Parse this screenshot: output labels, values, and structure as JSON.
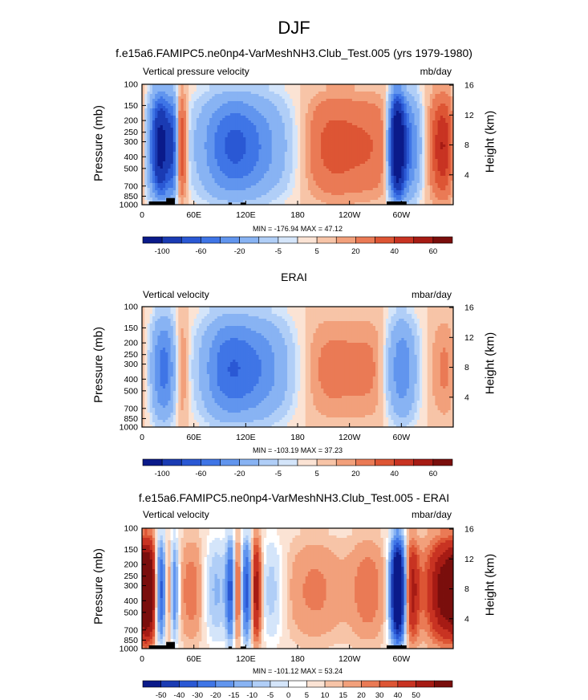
{
  "title": "DJF",
  "colors": {
    "levels_main": [
      "#0a1a8a",
      "#1a3bb3",
      "#2a58d4",
      "#3f75e6",
      "#6195ee",
      "#88b3f3",
      "#b0cef7",
      "#d4e5fa",
      "#fbe3d4",
      "#f7c4a7",
      "#f2a07b",
      "#ea7a55",
      "#dd5534",
      "#c83322",
      "#a61b14",
      "#7a0e0c"
    ],
    "levels_diff": [
      "#0a1a8a",
      "#1a3bb3",
      "#2a58d4",
      "#3f75e6",
      "#6195ee",
      "#88b3f3",
      "#b0cef7",
      "#d4e5fa",
      "#ffffff",
      "#fbe3d4",
      "#f7c4a7",
      "#f2a07b",
      "#ea7a55",
      "#dd5534",
      "#c83322",
      "#a61b14",
      "#7a0e0c"
    ],
    "terrain": "#000000"
  },
  "chart_data": [
    {
      "type": "heatmap",
      "title": "f.e15a6.FAMIPC5.ne0np4-VarMeshNH3.Club_Test.005 (yrs 1979-1980)",
      "left_label": "Vertical pressure velocity",
      "units": "mb/day",
      "ylabel": "Pressure (mb)",
      "ylabel_right": "Height (km)",
      "xticks": [
        "0",
        "60E",
        "120E",
        "180",
        "120W",
        "60W"
      ],
      "xtick_lon": [
        0,
        60,
        120,
        180,
        240,
        300
      ],
      "xlim": [
        0,
        360
      ],
      "ylim_mb": [
        1000,
        100
      ],
      "yticks": [
        "100",
        "150",
        "200",
        "250",
        "300",
        "400",
        "500",
        "700",
        "850",
        "1000"
      ],
      "ytick_mb": [
        100,
        150,
        200,
        250,
        300,
        400,
        500,
        700,
        850,
        1000
      ],
      "height_ticks": [
        "16",
        "12",
        "8",
        "4"
      ],
      "height_km": [
        16,
        12,
        8,
        4
      ],
      "minmax": "MIN = -176.94  MAX = 47.12",
      "colorbar_labels": [
        "-100",
        "-60",
        "-20",
        "-5",
        "5",
        "20",
        "40",
        "60"
      ],
      "colorbar_positions": [
        1,
        3,
        5,
        7,
        9,
        11,
        13,
        15
      ],
      "features": [
        {
          "lon": 22,
          "amp": -140,
          "w": 8
        },
        {
          "lon": 36,
          "amp": -60,
          "w": 4
        },
        {
          "lon": 45,
          "amp": 35,
          "w": 5
        },
        {
          "lon": 118,
          "amp": -55,
          "w": 35
        },
        {
          "lon": 100,
          "amp": -25,
          "w": 20
        },
        {
          "lon": 220,
          "amp": 22,
          "w": 28
        },
        {
          "lon": 270,
          "amp": 12,
          "w": 20
        },
        {
          "lon": 295,
          "amp": -170,
          "w": 6
        },
        {
          "lon": 308,
          "amp": -60,
          "w": 10
        },
        {
          "lon": 350,
          "amp": 38,
          "w": 12
        },
        {
          "lon": 5,
          "amp": -20,
          "w": 8
        }
      ],
      "terrain": [
        [
          8,
          32,
          940
        ],
        [
          28,
          38,
          880
        ],
        [
          100,
          104,
          960
        ],
        [
          114,
          120,
          960
        ],
        [
          283,
          306,
          940
        ]
      ]
    },
    {
      "type": "heatmap",
      "title": "ERAI",
      "left_label": "Vertical velocity",
      "units": "mbar/day",
      "ylabel": "Pressure (mb)",
      "ylabel_right": "Height (km)",
      "xticks": [
        "0",
        "60E",
        "120E",
        "180",
        "120W",
        "60W"
      ],
      "xtick_lon": [
        0,
        60,
        120,
        180,
        240,
        300
      ],
      "xlim": [
        0,
        360
      ],
      "ylim_mb": [
        1000,
        100
      ],
      "yticks": [
        "100",
        "150",
        "200",
        "250",
        "300",
        "400",
        "500",
        "700",
        "850",
        "1000"
      ],
      "ytick_mb": [
        100,
        150,
        200,
        250,
        300,
        400,
        500,
        700,
        850,
        1000
      ],
      "height_ticks": [
        "16",
        "12",
        "8",
        "4"
      ],
      "height_km": [
        16,
        12,
        8,
        4
      ],
      "minmax": "MIN = -103.19  MAX = 37.23",
      "colorbar_labels": [
        "-100",
        "-60",
        "-20",
        "-5",
        "5",
        "20",
        "40",
        "60"
      ],
      "colorbar_positions": [
        1,
        3,
        5,
        7,
        9,
        11,
        13,
        15
      ],
      "features": [
        {
          "lon": 25,
          "amp": -60,
          "w": 10
        },
        {
          "lon": 45,
          "amp": 18,
          "w": 6
        },
        {
          "lon": 125,
          "amp": -55,
          "w": 32
        },
        {
          "lon": 95,
          "amp": -30,
          "w": 18
        },
        {
          "lon": 215,
          "amp": 12,
          "w": 30
        },
        {
          "lon": 270,
          "amp": 8,
          "w": 20
        },
        {
          "lon": 300,
          "amp": -50,
          "w": 12
        },
        {
          "lon": 350,
          "amp": 10,
          "w": 12
        }
      ],
      "terrain": []
    },
    {
      "type": "heatmap",
      "title": "f.e15a6.FAMIPC5.ne0np4-VarMeshNH3.Club_Test.005 - ERAI",
      "left_label": "Vertical velocity",
      "units": "mbar/day",
      "ylabel": "Pressure (mb)",
      "ylabel_right": "Height (km)",
      "xticks": [
        "0",
        "60E",
        "120E",
        "180",
        "120W",
        "60W"
      ],
      "xtick_lon": [
        0,
        60,
        120,
        180,
        240,
        300
      ],
      "xlim": [
        0,
        360
      ],
      "ylim_mb": [
        1000,
        100
      ],
      "yticks": [
        "100",
        "150",
        "200",
        "250",
        "300",
        "400",
        "500",
        "700",
        "850",
        "1000"
      ],
      "ytick_mb": [
        100,
        150,
        200,
        250,
        300,
        400,
        500,
        700,
        850,
        1000
      ],
      "height_ticks": [
        "16",
        "12",
        "8",
        "4"
      ],
      "height_km": [
        16,
        12,
        8,
        4
      ],
      "minmax": "MIN = -101.12  MAX = 53.24",
      "colorbar_labels": [
        "-50",
        "-40",
        "-30",
        "-20",
        "-15",
        "-10",
        "-5",
        "0",
        "5",
        "10",
        "15",
        "20",
        "30",
        "40",
        "50"
      ],
      "colorbar_positions": [
        1,
        2,
        3,
        4,
        5,
        6,
        7,
        8,
        9,
        10,
        11,
        12,
        13,
        14,
        15
      ],
      "features": [
        {
          "lon": 8,
          "amp": 45,
          "w": 8
        },
        {
          "lon": 22,
          "amp": -50,
          "w": 5
        },
        {
          "lon": 30,
          "amp": 25,
          "w": 4
        },
        {
          "lon": 37,
          "amp": -30,
          "w": 4
        },
        {
          "lon": 58,
          "amp": 12,
          "w": 12
        },
        {
          "lon": 85,
          "amp": -15,
          "w": 10
        },
        {
          "lon": 103,
          "amp": -40,
          "w": 4
        },
        {
          "lon": 110,
          "amp": 25,
          "w": 4
        },
        {
          "lon": 122,
          "amp": -45,
          "w": 5
        },
        {
          "lon": 131,
          "amp": 40,
          "w": 5
        },
        {
          "lon": 150,
          "amp": -12,
          "w": 10
        },
        {
          "lon": 200,
          "amp": 10,
          "w": 25
        },
        {
          "lon": 262,
          "amp": 12,
          "w": 15
        },
        {
          "lon": 296,
          "amp": -90,
          "w": 6
        },
        {
          "lon": 312,
          "amp": 30,
          "w": 6
        },
        {
          "lon": 330,
          "amp": 8,
          "w": 10
        },
        {
          "lon": 350,
          "amp": 40,
          "w": 12
        }
      ],
      "terrain": [
        [
          8,
          32,
          940
        ],
        [
          28,
          38,
          880
        ],
        [
          100,
          104,
          960
        ],
        [
          114,
          120,
          960
        ],
        [
          283,
          306,
          940
        ]
      ]
    }
  ]
}
